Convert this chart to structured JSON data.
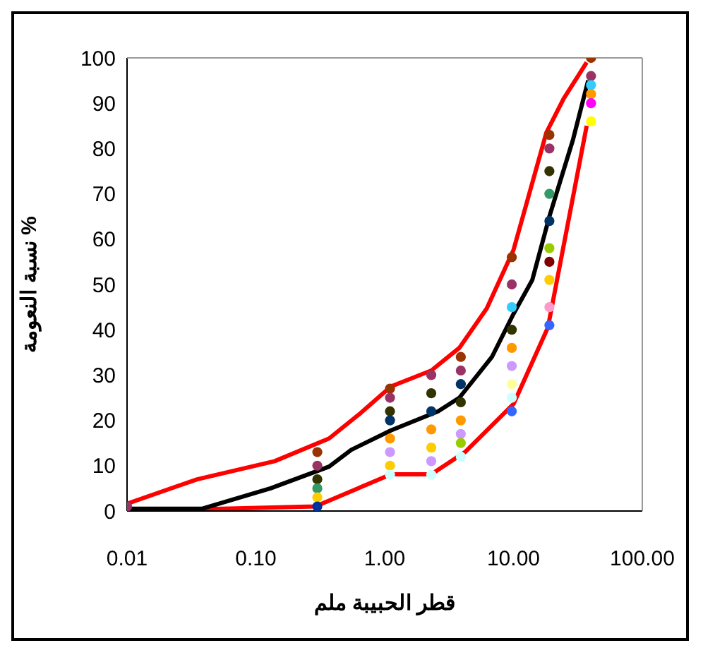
{
  "chart_data": {
    "type": "line",
    "xlabel": "قطر الحبيبة ملم",
    "ylabel": "نسبة النعومة %",
    "log": "x",
    "xlim": [
      0.01,
      100
    ],
    "xticks": [
      0.01,
      {
        "value": 0.1,
        "label": "0.10"
      },
      {
        "value": 1,
        "label": "1.00"
      },
      {
        "value": 10,
        "label": "10.00"
      },
      {
        "value": 100,
        "label": "100.00"
      }
    ],
    "ylim": [
      0,
      100
    ],
    "yticks": [
      0,
      10,
      20,
      30,
      40,
      50,
      60,
      70,
      80,
      90,
      100
    ],
    "grid": false,
    "series": [
      {
        "type": "line",
        "color": "#ff0000",
        "x": [
          0.01,
          0.035,
          0.14,
          0.37,
          0.65,
          1.12,
          2.3,
          3.8,
          6.2,
          10,
          18,
          24.5,
          37
        ],
        "values": [
          1.6,
          7,
          11,
          16,
          21.6,
          27.5,
          31,
          36,
          44.7,
          57.6,
          83.5,
          91,
          99
        ]
      },
      {
        "color": "#ff0000",
        "x": [
          0.01,
          0.29,
          1.12,
          2.3,
          4.2,
          10,
          18.5,
          37
        ],
        "values": [
          0,
          1,
          8.1,
          8.1,
          13,
          23.6,
          40.5,
          85
        ]
      },
      {
        "color": "#000000",
        "x": [
          0.01,
          0.038,
          0.13,
          0.37,
          0.55,
          1.12,
          2.6,
          3.8,
          6.8,
          10,
          14,
          19,
          29,
          38
        ],
        "values": [
          0.5,
          0.5,
          5,
          9.8,
          13.5,
          17.8,
          22,
          25,
          34,
          43.5,
          51,
          65,
          82,
          95
        ]
      },
      {
        "type": "scatter",
        "marker": "circle",
        "x": [
          0.01,
          0.3,
          0.3,
          0.3,
          0.3,
          0.3,
          0.3,
          1.1,
          1.1,
          1.1,
          1.1,
          1.1,
          1.1,
          1.1,
          1.1,
          2.3,
          2.3,
          2.3,
          2.3,
          2.3,
          2.3,
          2.3,
          3.9,
          3.9,
          3.9,
          3.9,
          3.9,
          3.9,
          3.9,
          3.9,
          9.7,
          9.7,
          9.7,
          9.7,
          9.7,
          9.7,
          9.7,
          9.7,
          9.7,
          19,
          19,
          19,
          19,
          19,
          19,
          19,
          19,
          19,
          19,
          40,
          40,
          40,
          40,
          40,
          40
        ],
        "values": [
          1,
          13,
          10,
          7,
          5,
          3,
          1,
          27,
          25,
          22,
          20,
          16,
          13,
          10,
          8,
          30,
          26,
          22,
          18,
          14,
          11,
          8,
          34,
          31,
          28,
          24,
          20,
          17,
          15,
          12,
          56,
          50,
          45,
          40,
          36,
          32,
          28,
          25,
          22,
          83,
          80,
          75,
          70,
          64,
          58,
          55,
          51,
          45,
          41,
          100,
          96,
          94,
          92,
          90,
          86
        ],
        "colors": [
          "#993366",
          "#993300",
          "#993366",
          "#333300",
          "#339966",
          "#ffcc00",
          "#003399",
          "#993300",
          "#993366",
          "#333300",
          "#003366",
          "#ff9900",
          "#cc99ff",
          "#ffcc00",
          "#ccffff",
          "#993366",
          "#333300",
          "#003366",
          "#ff9900",
          "#ffcc00",
          "#cc99ff",
          "#ccffff",
          "#993300",
          "#993366",
          "#003366",
          "#333300",
          "#ff9900",
          "#cc99ff",
          "#99cc00",
          "#ccffff",
          "#993300",
          "#993366",
          "#33ccff",
          "#333300",
          "#ff9900",
          "#cc99ff",
          "#ffff99",
          "#ccffff",
          "#3366ff",
          "#993300",
          "#993366",
          "#333300",
          "#339966",
          "#003366",
          "#99cc00",
          "#800000",
          "#ffcc00",
          "#ff99cc",
          "#3366ff",
          "#993300",
          "#993366",
          "#33ccff",
          "#ff9900",
          "#ff00ff",
          "#ffff00"
        ]
      }
    ],
    "line_style": "solid",
    "marker": "none"
  }
}
